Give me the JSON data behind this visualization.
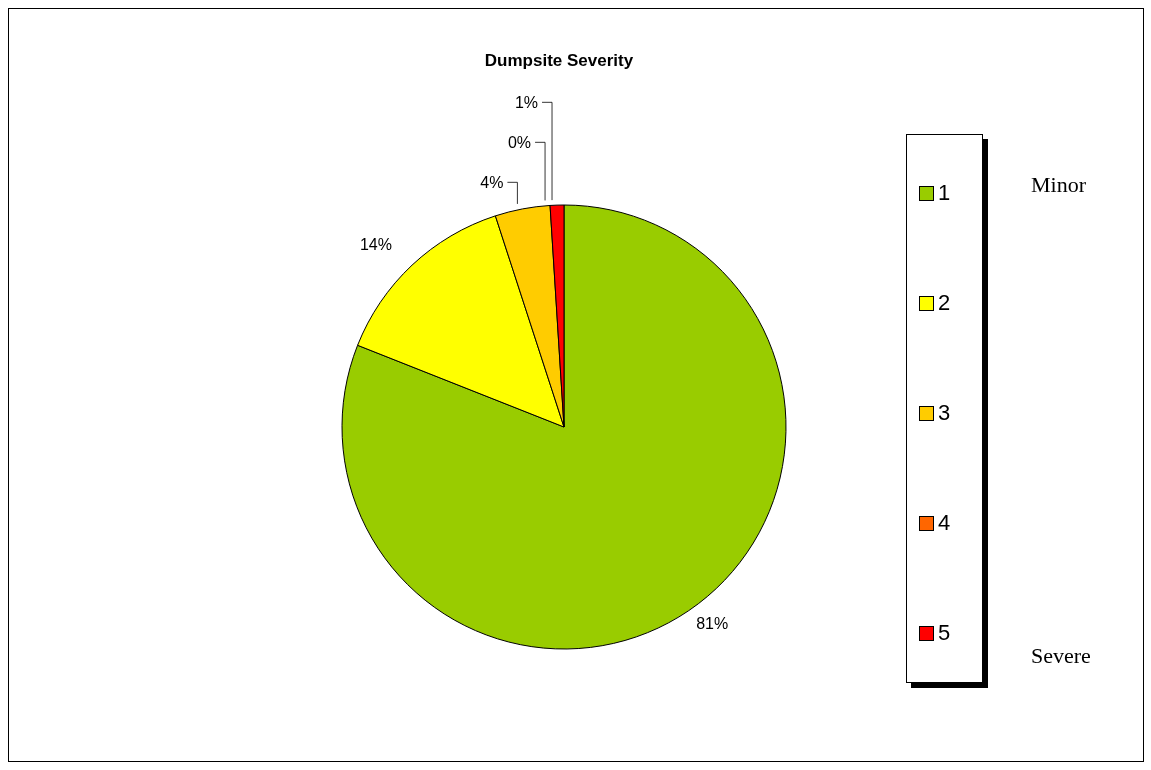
{
  "chart_data": {
    "type": "pie",
    "title": "Dumpsite Severity",
    "categories": [
      "1",
      "2",
      "3",
      "4",
      "5"
    ],
    "values": [
      81,
      14,
      4,
      0,
      1
    ],
    "colors": [
      "#99cc00",
      "#ffff00",
      "#ffcc00",
      "#ff6600",
      "#ff0000"
    ],
    "value_labels": [
      "81%",
      "14%",
      "4%",
      "0%",
      "1%"
    ],
    "legend": "right",
    "annotations": [
      "Minor",
      "Severe"
    ]
  }
}
